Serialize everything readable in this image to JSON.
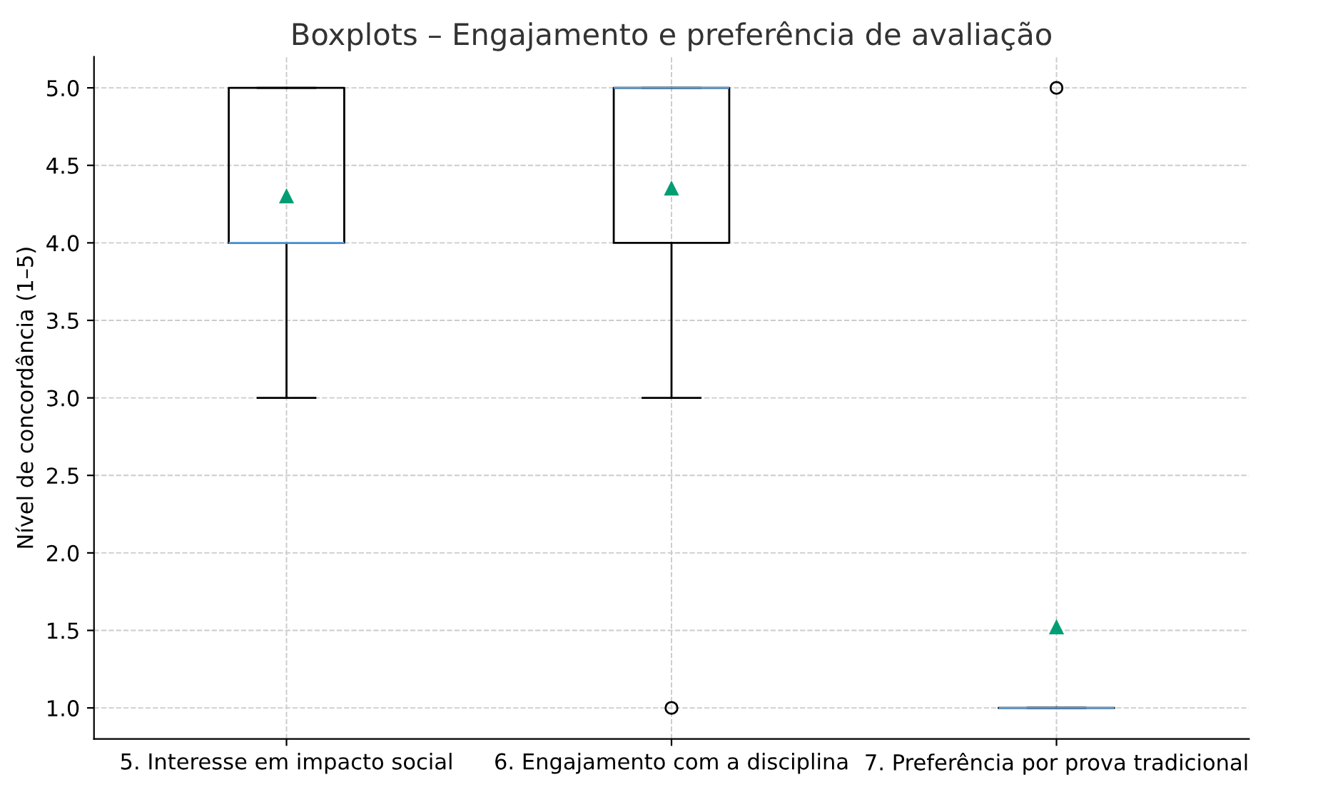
{
  "chart_data": {
    "type": "box",
    "title": "Boxplots – Engajamento e preferência de avaliação",
    "ylabel": "Nível de concordância (1–5)",
    "categories": [
      "5. Interesse em impacto social",
      "6. Engajamento com a disciplina",
      "7. Preferência por prova tradicional"
    ],
    "boxes": [
      {
        "low": 3,
        "q1": 4,
        "median": 4,
        "q3": 5,
        "high": 5,
        "mean": 4.3
      },
      {
        "low": 3,
        "q1": 4,
        "median": 5,
        "q3": 5,
        "high": 5,
        "mean": 4.35,
        "outliers": [
          1
        ]
      },
      {
        "low": 1,
        "q1": 1,
        "median": 1,
        "q3": 1,
        "high": 1,
        "mean": 1.52,
        "outliers": [
          5
        ]
      }
    ],
    "ylim": [
      0.8,
      5.2
    ],
    "yticks": [
      {
        "value": 1,
        "label": "1.0"
      },
      {
        "value": 1.5,
        "label": "1.5"
      },
      {
        "value": 2,
        "label": "2.0"
      },
      {
        "value": 2.5,
        "label": "2.5"
      },
      {
        "value": 3,
        "label": "3.0"
      },
      {
        "value": 3.5,
        "label": "3.5"
      },
      {
        "value": 4,
        "label": "4.0"
      },
      {
        "value": 4.5,
        "label": "4.5"
      },
      {
        "value": 5,
        "label": "5.0"
      }
    ],
    "grid": true
  }
}
